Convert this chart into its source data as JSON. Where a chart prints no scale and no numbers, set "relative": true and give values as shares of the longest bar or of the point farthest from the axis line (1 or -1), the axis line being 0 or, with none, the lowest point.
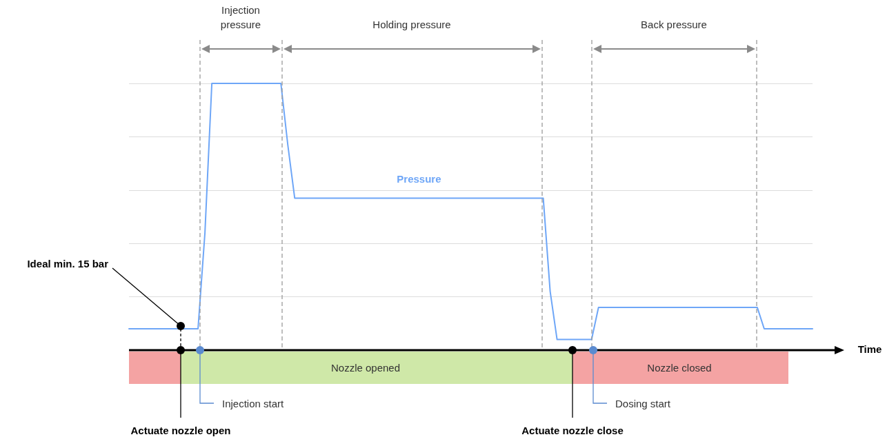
{
  "chart_data": {
    "type": "line",
    "relative": true,
    "grid": "y",
    "marker": "none",
    "line_style": "solid",
    "xlabel": "Time",
    "categories": [
      null,
      null,
      null,
      null,
      null,
      null,
      null,
      null,
      null,
      null,
      null,
      null,
      null,
      null,
      null,
      null,
      null,
      null,
      null,
      null,
      null,
      null,
      null,
      null,
      null,
      null,
      null,
      null,
      null,
      null,
      null,
      null,
      null,
      null,
      null,
      null,
      null,
      null,
      null,
      null,
      null,
      null,
      null,
      null,
      null,
      null,
      null,
      null,
      null,
      null,
      null,
      null,
      null,
      null,
      null,
      null,
      null,
      null,
      null,
      null,
      null,
      null,
      null,
      null,
      null,
      null,
      null,
      null,
      null,
      null,
      null,
      null,
      null,
      null,
      null,
      null,
      null,
      null,
      null,
      null,
      null,
      null,
      null,
      null,
      null,
      null,
      null,
      null,
      null,
      null,
      null,
      null,
      null,
      null,
      null,
      null,
      null,
      null,
      null,
      null
    ],
    "series": [
      {
        "name": "Pressure",
        "color": "#6ea6f7",
        "values": [
          0.08,
          0.08,
          0.08,
          0.08,
          0.08,
          0.08,
          0.08,
          0.08,
          0.08,
          0.08,
          0.08,
          0.44,
          1,
          1,
          1,
          1,
          1,
          1,
          1,
          1,
          1,
          1,
          1,
          0.77,
          0.57,
          0.57,
          0.57,
          0.57,
          0.57,
          0.57,
          0.57,
          0.57,
          0.57,
          0.57,
          0.57,
          0.57,
          0.57,
          0.57,
          0.57,
          0.57,
          0.57,
          0.57,
          0.57,
          0.57,
          0.57,
          0.57,
          0.57,
          0.57,
          0.57,
          0.57,
          0.57,
          0.57,
          0.57,
          0.57,
          0.57,
          0.57,
          0.57,
          0.57,
          0.57,
          0.57,
          0.57,
          0.22,
          0.04,
          0.04,
          0.04,
          0.04,
          0.04,
          0.04,
          0.16,
          0.16,
          0.16,
          0.16,
          0.16,
          0.16,
          0.16,
          0.16,
          0.16,
          0.16,
          0.16,
          0.16,
          0.16,
          0.16,
          0.16,
          0.16,
          0.16,
          0.16,
          0.16,
          0.16,
          0.16,
          0.16,
          0.16,
          0.16,
          0.08,
          0.08,
          0.08,
          0.08,
          0.08,
          0.08,
          0.08,
          0.08
        ]
      }
    ],
    "annotations": [
      "Injection pressure",
      "Holding pressure",
      "Back pressure",
      "Ideal min. 15 bar",
      "Injection start",
      "Dosing start",
      "Actuate nozzle open",
      "Actuate nozzle close",
      "Nozzle opened",
      "Nozzle closed"
    ]
  }
}
